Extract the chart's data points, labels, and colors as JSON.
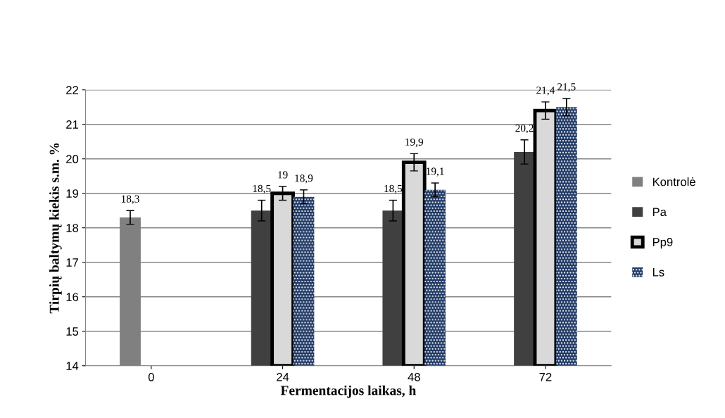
{
  "chart_data": {
    "type": "bar",
    "xlabel": "Fermentacijos laikas, h",
    "ylabel": "Tirpių baltymų kiekis s.m. %",
    "categories": [
      "0",
      "24",
      "48",
      "72"
    ],
    "series": [
      {
        "name": "Kontrolė",
        "color": "#808080",
        "values": [
          18.3,
          null,
          null,
          null
        ],
        "errors": [
          0.2,
          null,
          null,
          null
        ],
        "value_labels": [
          "18,3",
          null,
          null,
          null
        ]
      },
      {
        "name": "Pa",
        "color": "#404040",
        "values": [
          null,
          18.5,
          18.5,
          20.2
        ],
        "errors": [
          null,
          0.3,
          0.3,
          0.35
        ],
        "value_labels": [
          null,
          "18,5",
          "18,5",
          "20,2"
        ]
      },
      {
        "name": "Pp9",
        "color": "#d9d9d9",
        "values": [
          null,
          19,
          19.9,
          21.4
        ],
        "errors": [
          null,
          0.2,
          0.25,
          0.25
        ],
        "value_labels": [
          null,
          "19",
          "19,9",
          "21,4"
        ]
      },
      {
        "name": "Ls",
        "color": "#1f3864",
        "values": [
          null,
          18.9,
          19.1,
          21.5
        ],
        "errors": [
          null,
          0.2,
          0.2,
          0.25
        ],
        "value_labels": [
          null,
          "18,9",
          "19,1",
          "21,5"
        ]
      }
    ],
    "ylim": [
      14,
      22
    ],
    "yticks": [
      14,
      15,
      16,
      17,
      18,
      19,
      20,
      21,
      22
    ],
    "grid": "y",
    "legend": "right"
  }
}
